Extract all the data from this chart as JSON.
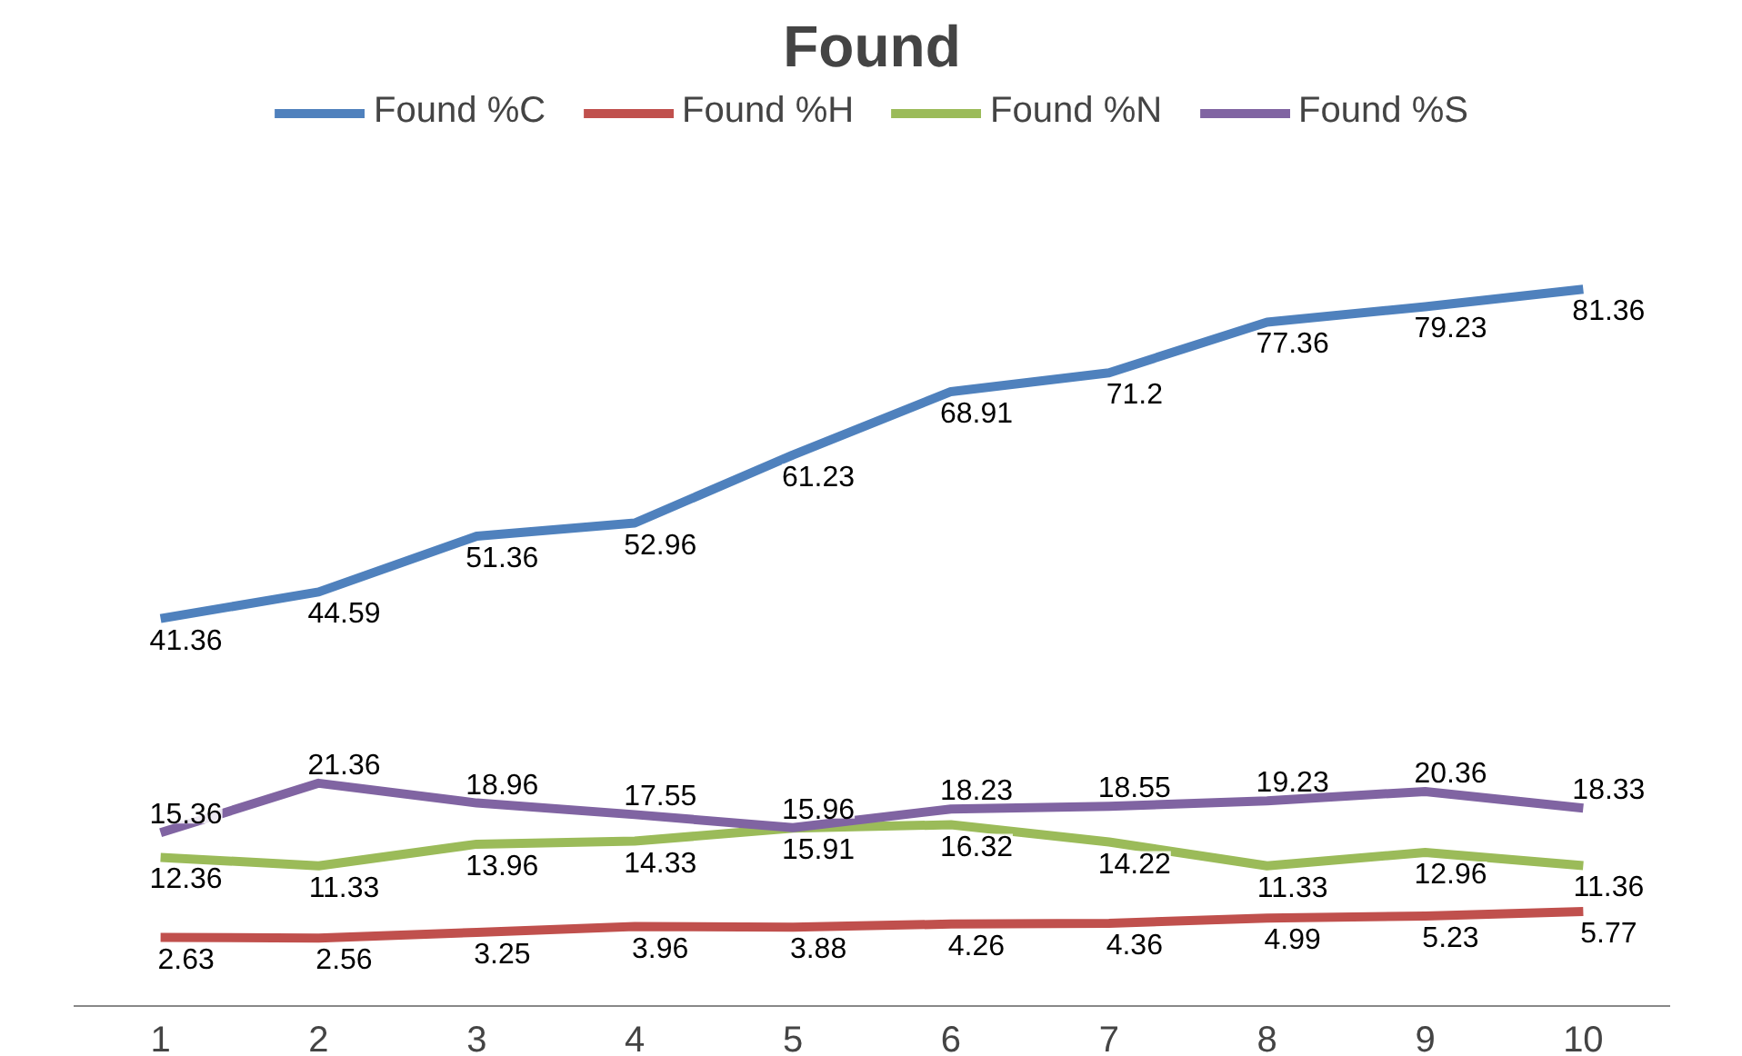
{
  "chart_data": {
    "type": "line",
    "title": "Found",
    "categories": [
      "1",
      "2",
      "3",
      "4",
      "5",
      "6",
      "7",
      "8",
      "9",
      "10"
    ],
    "series": [
      {
        "name": "Found %C",
        "color": "#4f81bd",
        "values": [
          41.36,
          44.59,
          51.36,
          52.96,
          61.23,
          68.91,
          71.2,
          77.36,
          79.23,
          81.36
        ]
      },
      {
        "name": "Found %H",
        "color": "#c0504d",
        "values": [
          2.63,
          2.56,
          3.25,
          3.96,
          3.88,
          4.26,
          4.36,
          4.99,
          5.23,
          5.77
        ]
      },
      {
        "name": "Found %N",
        "color": "#9bbb59",
        "values": [
          12.36,
          11.33,
          13.96,
          14.33,
          15.91,
          16.32,
          14.22,
          11.33,
          12.96,
          11.36
        ]
      },
      {
        "name": "Found %S",
        "color": "#8064a2",
        "values": [
          15.36,
          21.36,
          18.96,
          17.55,
          15.96,
          18.23,
          18.55,
          19.23,
          20.36,
          18.33
        ]
      }
    ],
    "data_labels": true,
    "legend": "top",
    "grid": false,
    "marker": "none",
    "line_style": "solid"
  }
}
